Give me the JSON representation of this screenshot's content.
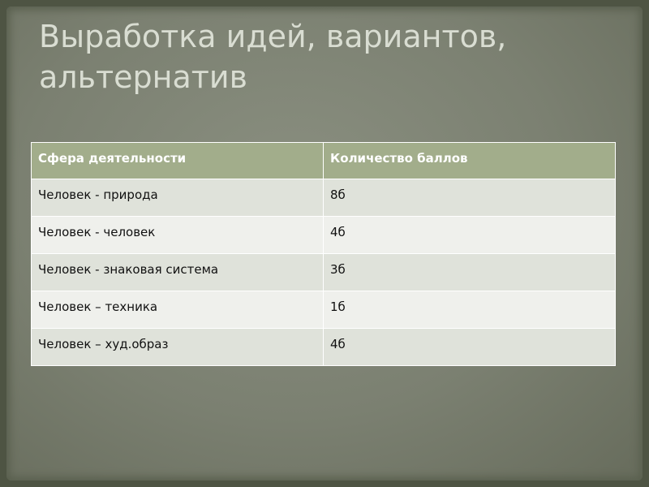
{
  "slide": {
    "title": "Выработка идей, вариантов, альтернатив",
    "table": {
      "headers": [
        "Сфера деятельности",
        "Количество баллов"
      ],
      "rows": [
        [
          "Человек - природа",
          "8б"
        ],
        [
          "Человек - человек",
          "4б"
        ],
        [
          "Человек - знаковая система",
          "3б"
        ],
        [
          "Человек – техника",
          "1б"
        ],
        [
          "Человек – худ.образ",
          "4б"
        ]
      ]
    }
  },
  "colors": {
    "header_bg": "#a2ad8b",
    "row_odd": "#dfe2da",
    "row_even": "#eff0ec",
    "background": "#7b8071"
  }
}
